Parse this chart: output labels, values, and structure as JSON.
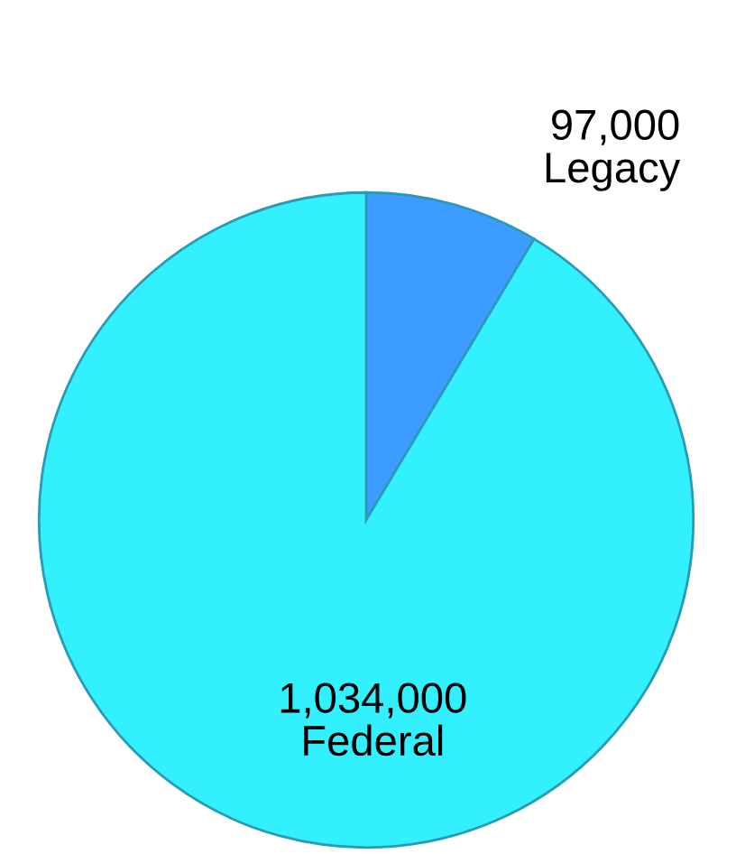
{
  "chart_data": {
    "type": "pie",
    "categories": [
      "Legacy",
      "Federal"
    ],
    "values": [
      97000,
      1034000
    ],
    "value_labels": [
      "97,000",
      "1,034,000"
    ],
    "colors": [
      "#3d9cff",
      "#33f0ff"
    ]
  }
}
